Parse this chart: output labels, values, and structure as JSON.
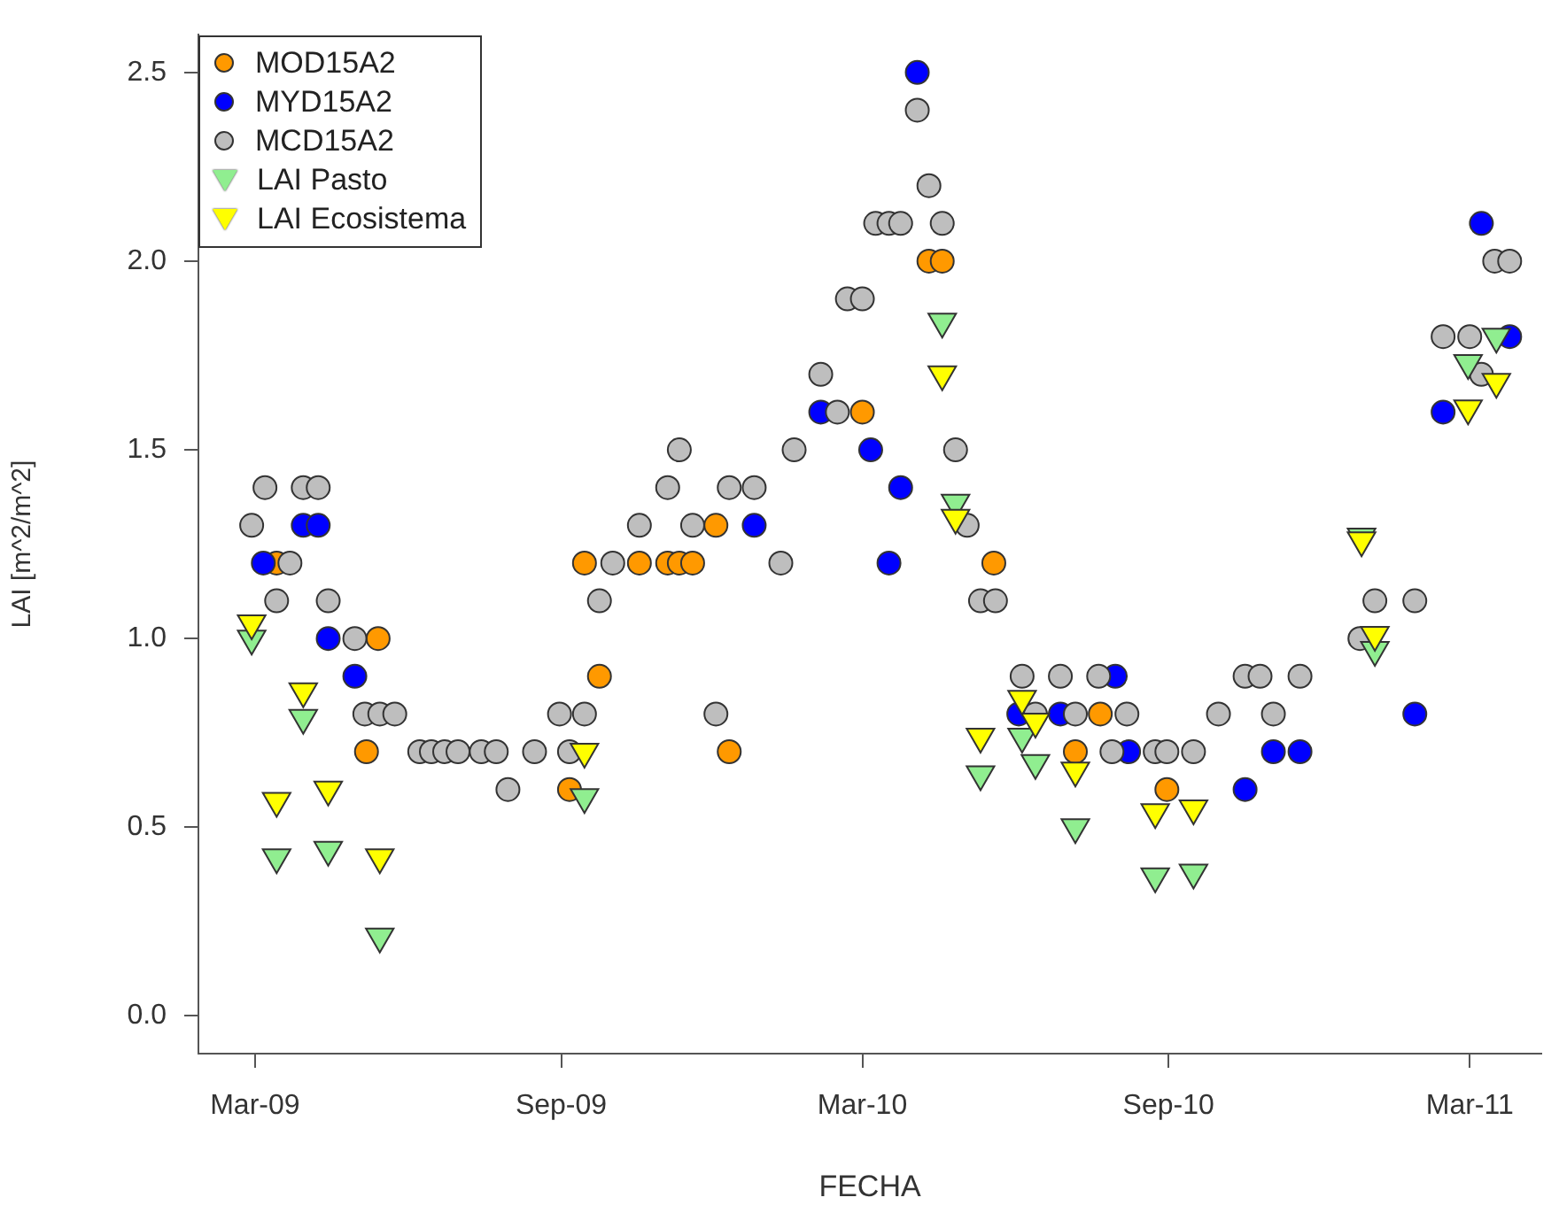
{
  "chart_data": {
    "type": "scatter",
    "xlabel": "FECHA",
    "ylabel": "LAI [m^2/m^2]",
    "xlim": [
      "2009-01-26",
      "2011-04-13"
    ],
    "ylim": [
      -0.1,
      2.6
    ],
    "xticks": [
      {
        "value": "2009-03-01",
        "label": "Mar-09"
      },
      {
        "value": "2009-09-01",
        "label": "Sep-09"
      },
      {
        "value": "2010-03-01",
        "label": "Mar-10"
      },
      {
        "value": "2010-09-01",
        "label": "Sep-10"
      },
      {
        "value": "2011-03-01",
        "label": "Mar-11"
      }
    ],
    "yticks": [
      {
        "value": 0,
        "label": "0.0"
      },
      0.5,
      {
        "value": 1,
        "label": "1.0"
      },
      1.5,
      {
        "value": 2,
        "label": "2.0"
      },
      2.5
    ],
    "grid": false,
    "legend": "top left",
    "series": [
      {
        "name": "MOD15A2",
        "color": "#ff9900",
        "marker": "circle",
        "x": [
          "2009-03-14",
          "2009-05-07",
          "2009-05-14",
          "2009-09-06",
          "2009-09-15",
          "2009-09-24",
          "2009-10-18",
          "2009-11-04",
          "2009-11-11",
          "2009-11-19",
          "2009-12-03",
          "2009-12-11",
          "2010-03-01",
          "2010-04-10",
          "2010-04-18",
          "2010-05-19",
          "2010-07-07",
          "2010-07-22",
          "2010-08-31"
        ],
        "values": [
          1.2,
          0.7,
          1.0,
          0.6,
          1.2,
          0.9,
          1.2,
          1.2,
          1.2,
          1.2,
          1.3,
          0.7,
          1.6,
          2.0,
          2.0,
          1.2,
          0.7,
          0.8,
          0.6
        ]
      },
      {
        "name": "MYD15A2",
        "color": "#0000ff",
        "marker": "circle",
        "x": [
          "2009-03-06",
          "2009-03-30",
          "2009-04-08",
          "2009-04-14",
          "2009-04-30",
          "2009-12-26",
          "2010-02-04",
          "2010-03-06",
          "2010-03-17",
          "2010-03-24",
          "2010-04-03",
          "2010-06-03",
          "2010-06-28",
          "2010-07-31",
          "2010-08-08",
          "2010-10-17",
          "2010-11-03",
          "2010-11-19",
          "2011-01-27",
          "2011-02-13",
          "2011-03-08",
          "2011-03-25"
        ],
        "values": [
          1.2,
          1.3,
          1.3,
          1.0,
          0.9,
          1.3,
          1.6,
          1.5,
          1.2,
          1.4,
          2.5,
          0.8,
          0.8,
          0.9,
          0.7,
          0.6,
          0.7,
          0.7,
          0.8,
          1.6,
          2.1,
          1.8
        ]
      },
      {
        "name": "MCD15A2",
        "color": "#bebebe",
        "marker": "circle",
        "x": [
          "2009-02-27",
          "2009-03-07",
          "2009-03-14",
          "2009-03-22",
          "2009-03-30",
          "2009-04-08",
          "2009-04-14",
          "2009-04-30",
          "2009-05-06",
          "2009-05-15",
          "2009-05-24",
          "2009-06-08",
          "2009-06-15",
          "2009-06-23",
          "2009-07-01",
          "2009-07-15",
          "2009-07-24",
          "2009-07-31",
          "2009-08-16",
          "2009-08-31",
          "2009-09-06",
          "2009-09-15",
          "2009-09-24",
          "2009-10-02",
          "2009-10-18",
          "2009-11-04",
          "2009-11-11",
          "2009-11-19",
          "2009-12-03",
          "2009-12-11",
          "2009-12-26",
          "2010-01-11",
          "2010-01-19",
          "2010-02-04",
          "2010-02-14",
          "2010-02-20",
          "2010-03-01",
          "2010-03-09",
          "2010-03-17",
          "2010-03-24",
          "2010-04-03",
          "2010-04-10",
          "2010-04-18",
          "2010-04-26",
          "2010-05-03",
          "2010-05-11",
          "2010-05-20",
          "2010-06-05",
          "2010-06-13",
          "2010-06-28",
          "2010-07-07",
          "2010-07-21",
          "2010-07-29",
          "2010-08-07",
          "2010-08-24",
          "2010-08-31",
          "2010-09-16",
          "2010-10-01",
          "2010-10-17",
          "2010-10-26",
          "2010-11-03",
          "2010-11-19",
          "2010-12-25",
          "2011-01-03",
          "2011-01-27",
          "2011-02-13",
          "2011-03-01",
          "2011-03-08",
          "2011-03-16",
          "2011-03-25"
        ],
        "values": [
          1.3,
          1.4,
          1.1,
          1.2,
          1.4,
          1.4,
          1.1,
          1.0,
          0.8,
          0.8,
          0.8,
          0.7,
          0.7,
          0.7,
          0.7,
          0.7,
          0.7,
          0.6,
          0.7,
          0.8,
          0.7,
          0.8,
          1.1,
          1.2,
          1.3,
          1.4,
          1.5,
          1.3,
          0.8,
          1.4,
          1.4,
          1.2,
          1.5,
          1.7,
          1.6,
          1.9,
          1.9,
          2.1,
          2.1,
          2.1,
          2.4,
          2.2,
          2.1,
          1.5,
          1.3,
          1.1,
          1.1,
          0.9,
          0.8,
          0.9,
          0.8,
          0.9,
          0.7,
          0.8,
          0.7,
          0.7,
          0.7,
          0.8,
          0.9,
          0.9,
          0.8,
          0.9,
          1.0,
          1.1,
          1.1,
          1.8,
          1.8,
          1.7,
          2.0,
          2.0
        ]
      },
      {
        "name": "LAI Pasto",
        "color": "#90ee90",
        "marker": "triangle",
        "x": [
          "2009-02-27",
          "2009-03-14",
          "2009-03-30",
          "2009-04-14",
          "2009-05-15",
          "2009-09-15",
          "2010-04-18",
          "2010-04-26",
          "2010-05-11",
          "2010-06-05",
          "2010-06-13",
          "2010-07-07",
          "2010-08-24",
          "2010-09-16",
          "2010-12-26",
          "2011-01-03",
          "2011-02-28",
          "2011-03-17"
        ],
        "values": [
          1.0,
          0.42,
          0.79,
          0.44,
          0.21,
          0.58,
          1.84,
          1.36,
          0.64,
          0.74,
          0.67,
          0.5,
          0.37,
          0.38,
          1.27,
          0.97,
          1.73,
          1.8
        ]
      },
      {
        "name": "LAI Ecosistema",
        "color": "#ffff00",
        "marker": "triangle",
        "x": [
          "2009-02-27",
          "2009-03-14",
          "2009-03-30",
          "2009-04-14",
          "2009-05-15",
          "2009-09-15",
          "2010-04-18",
          "2010-04-26",
          "2010-05-11",
          "2010-06-05",
          "2010-06-13",
          "2010-07-07",
          "2010-08-24",
          "2010-09-16",
          "2010-12-26",
          "2011-01-03",
          "2011-02-28",
          "2011-03-17"
        ],
        "values": [
          1.04,
          0.57,
          0.86,
          0.6,
          0.42,
          0.7,
          1.7,
          1.32,
          0.74,
          0.84,
          0.78,
          0.65,
          0.54,
          0.55,
          1.26,
          1.01,
          1.61,
          1.68
        ]
      }
    ]
  }
}
